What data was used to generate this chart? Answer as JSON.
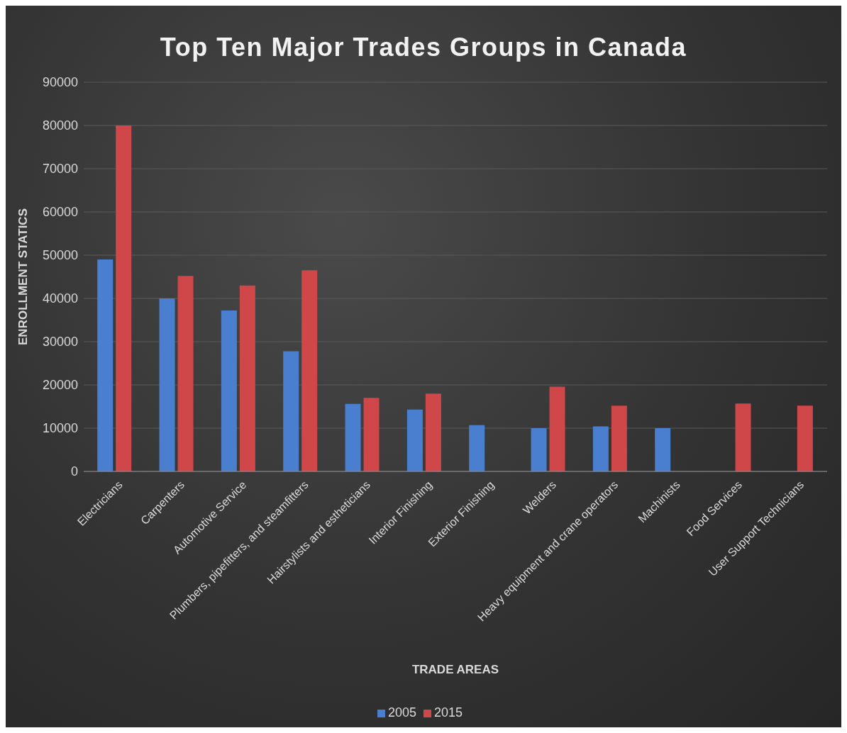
{
  "chart_data": {
    "type": "bar",
    "title": "Top Ten Major Trades Groups in Canada",
    "xlabel": "TRADE AREAS",
    "ylabel": "ENROLLMENT STATICS",
    "categories": [
      "Electricians",
      "Carpenters",
      "Automotive Service",
      "Plumbers, pipefitters, and steamfitters",
      "Hairstylists and estheticians",
      "Interior Finishing",
      "Exterior Finishing",
      "Welders",
      "Heavy equipment and crane operators",
      "Machinists",
      "Food Services",
      "User Support Technicians"
    ],
    "series": [
      {
        "name": "2005",
        "color": "#4a7fd0",
        "values": [
          49000,
          40000,
          37200,
          27800,
          15600,
          14300,
          10700,
          10000,
          10400,
          10000,
          null,
          null
        ]
      },
      {
        "name": "2015",
        "color": "#d0474a",
        "values": [
          80000,
          45200,
          43000,
          46500,
          17000,
          18000,
          null,
          19600,
          15200,
          null,
          15700,
          15200
        ]
      }
    ],
    "ylim": [
      0,
      90000
    ],
    "yticks": [
      0,
      10000,
      20000,
      30000,
      40000,
      50000,
      60000,
      70000,
      80000,
      90000
    ],
    "grid": "y",
    "legend": "bottom"
  }
}
